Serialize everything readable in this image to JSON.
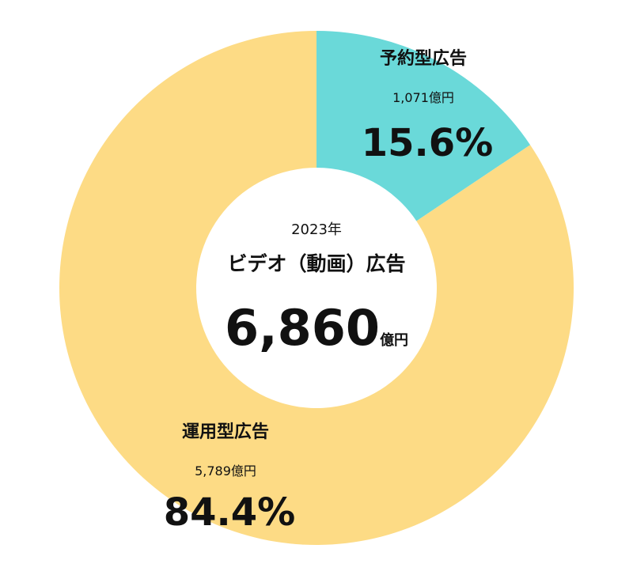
{
  "chart_data": {
    "type": "pie",
    "donut": true,
    "center": {
      "year": "2023年",
      "title": "ビデオ（動画）広告",
      "total_value": "6,860",
      "total_unit": "億円"
    },
    "slices": [
      {
        "label": "予約型広告",
        "amount_text": "1,071億円",
        "value": 1071,
        "percent": 15.6,
        "percent_text": "15.6%",
        "color": "#6ad9d9"
      },
      {
        "label": "運用型広告",
        "amount_text": "5,789億円",
        "value": 5789,
        "percent": 84.4,
        "percent_text": "84.4%",
        "color": "#fddb85"
      }
    ]
  }
}
